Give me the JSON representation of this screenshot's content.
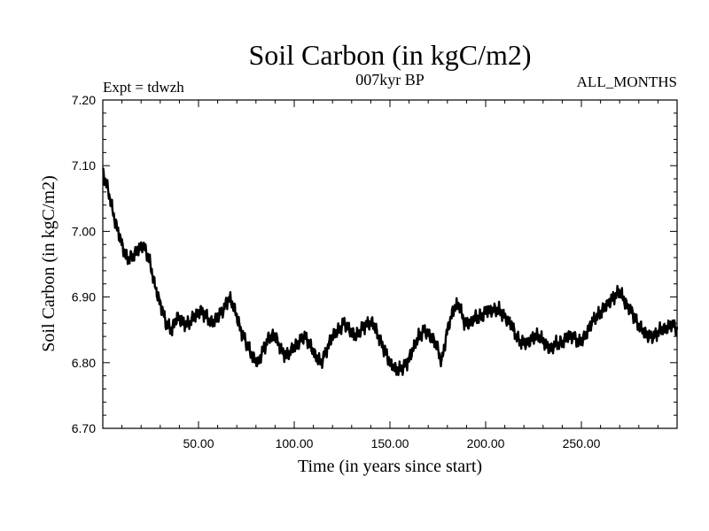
{
  "chart_data": {
    "type": "line",
    "title": "Soil Carbon (in kgC/m2)",
    "subtitle": "007kyr BP",
    "left_note": "Expt = tdwzh",
    "right_note": "ALL_MONTHS",
    "xlabel": "Time (in years since start)",
    "ylabel": "Soil Carbon (in kgC/m2)",
    "xlim": [
      0,
      300
    ],
    "ylim": [
      6.7,
      7.2
    ],
    "x_ticks": [
      50,
      100,
      150,
      200,
      250
    ],
    "x_tick_labels": [
      "50.00",
      "100.00",
      "150.00",
      "200.00",
      "250.00"
    ],
    "y_ticks": [
      6.7,
      6.8,
      6.9,
      7.0,
      7.1,
      7.2
    ],
    "y_tick_labels": [
      "6.70",
      "6.80",
      "6.90",
      "7.00",
      "7.10",
      "7.20"
    ],
    "grid": false,
    "line_color": "#000000",
    "series": [
      {
        "x": [
          0,
          3,
          6,
          9,
          12,
          15,
          18,
          21,
          24,
          27,
          30,
          33,
          36,
          39,
          42,
          45,
          48,
          51,
          54,
          57,
          60,
          63,
          66,
          69,
          72,
          75,
          78,
          81,
          84,
          87,
          90,
          93,
          96,
          99,
          102,
          105,
          108,
          111,
          114,
          117,
          120,
          123,
          126,
          129,
          132,
          135,
          138,
          141,
          144,
          147,
          150,
          153,
          156,
          159,
          162,
          165,
          168,
          171,
          174,
          177,
          180,
          183,
          186,
          189,
          192,
          195,
          198,
          201,
          204,
          207,
          210,
          213,
          216,
          219,
          222,
          225,
          228,
          231,
          234,
          237,
          240,
          243,
          246,
          249,
          252,
          255,
          258,
          261,
          264,
          267,
          270,
          273,
          276,
          279,
          282,
          285,
          288,
          291,
          294,
          297,
          300
        ],
        "y": [
          7.09,
          7.06,
          7.02,
          6.99,
          6.96,
          6.96,
          6.97,
          6.98,
          6.96,
          6.92,
          6.89,
          6.86,
          6.85,
          6.87,
          6.86,
          6.86,
          6.87,
          6.88,
          6.87,
          6.86,
          6.87,
          6.88,
          6.9,
          6.88,
          6.85,
          6.83,
          6.81,
          6.8,
          6.82,
          6.84,
          6.84,
          6.82,
          6.81,
          6.82,
          6.83,
          6.84,
          6.83,
          6.81,
          6.8,
          6.82,
          6.84,
          6.85,
          6.86,
          6.85,
          6.84,
          6.85,
          6.86,
          6.86,
          6.84,
          6.82,
          6.8,
          6.79,
          6.79,
          6.8,
          6.82,
          6.84,
          6.85,
          6.84,
          6.83,
          6.8,
          6.85,
          6.88,
          6.89,
          6.86,
          6.86,
          6.87,
          6.87,
          6.88,
          6.88,
          6.88,
          6.87,
          6.86,
          6.84,
          6.83,
          6.83,
          6.84,
          6.84,
          6.83,
          6.82,
          6.83,
          6.83,
          6.84,
          6.84,
          6.83,
          6.84,
          6.86,
          6.87,
          6.88,
          6.89,
          6.9,
          6.91,
          6.89,
          6.88,
          6.86,
          6.85,
          6.84,
          6.84,
          6.85,
          6.85,
          6.86,
          6.85
        ]
      }
    ]
  }
}
